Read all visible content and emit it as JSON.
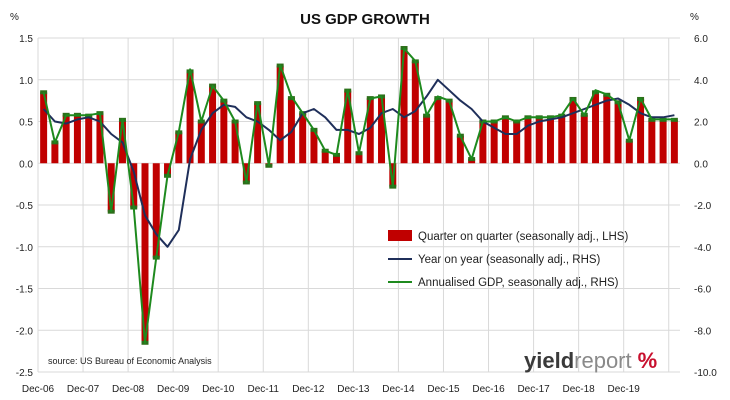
{
  "chart_data": {
    "type": "bar+line",
    "title": "US GDP GROWTH",
    "left_unit": "%",
    "right_unit": "%",
    "source": "source: US Bureau of Economic Analysis",
    "logo": {
      "part1": "yield",
      "part2": "report",
      "symbol": "%"
    },
    "y_left": {
      "min": -2.5,
      "max": 1.5,
      "ticks": [
        "1.5",
        "1.0",
        "0.5",
        "0.0",
        "-0.5",
        "-1.0",
        "-1.5",
        "-2.0",
        "-2.5"
      ]
    },
    "y_right": {
      "min": -10,
      "max": 6,
      "ticks": [
        "6.0",
        "4.0",
        "2.0",
        "0.0",
        "-2.0",
        "-4.0",
        "-6.0",
        "-8.0",
        "-10.0"
      ]
    },
    "x_ticks": [
      "Dec-06",
      "Dec-07",
      "Dec-08",
      "Dec-09",
      "Dec-10",
      "Dec-11",
      "Dec-12",
      "Dec-13",
      "Dec-14",
      "Dec-15",
      "Dec-16",
      "Dec-17",
      "Dec-18",
      "Dec-19"
    ],
    "grid": true,
    "legend_position": "bottom-right",
    "series": [
      {
        "name": "Quarter on quarter (seasonally adj., LHS)",
        "type": "bar",
        "axis": "left",
        "color": "#c00000",
        "values": [
          0.85,
          0.25,
          0.58,
          0.58,
          0.57,
          0.6,
          -0.58,
          0.52,
          -0.53,
          -2.15,
          -1.13,
          -0.15,
          0.37,
          1.1,
          0.5,
          0.93,
          0.75,
          0.5,
          -0.23,
          0.72,
          -0.03,
          1.17,
          0.78,
          0.6,
          0.4,
          0.15,
          0.1,
          0.87,
          0.12,
          0.78,
          0.8,
          -0.28,
          1.38,
          1.22,
          0.57,
          0.78,
          0.75,
          0.33,
          0.05,
          0.5,
          0.5,
          0.55,
          0.5,
          0.55,
          0.55,
          0.55,
          0.57,
          0.77,
          0.58,
          0.85,
          0.82,
          0.73,
          0.27,
          0.77,
          0.52,
          0.52,
          0.52
        ]
      },
      {
        "name": "Year on year (seasonally adj., RHS)",
        "type": "line",
        "axis": "right",
        "color": "#1f2f5a",
        "values": [
          2.6,
          2.0,
          1.9,
          2.1,
          2.2,
          2.0,
          1.4,
          1.0,
          -0.4,
          -2.5,
          -3.4,
          -4.0,
          -3.2,
          0.2,
          1.6,
          2.4,
          2.8,
          2.7,
          2.2,
          2.0,
          1.6,
          1.1,
          1.5,
          2.4,
          2.6,
          2.2,
          1.6,
          1.6,
          1.4,
          1.7,
          2.4,
          2.6,
          2.2,
          2.5,
          3.2,
          4.0,
          3.5,
          3.0,
          2.6,
          2.0,
          1.7,
          1.4,
          1.4,
          1.8,
          2.0,
          2.1,
          2.2,
          2.4,
          2.6,
          2.8,
          3.0,
          3.1,
          2.8,
          2.4,
          2.2,
          2.2,
          2.3
        ]
      },
      {
        "name": "Annualised GDP, seasonally adj., RHS)",
        "type": "line",
        "axis": "right",
        "color": "#1e8a1e",
        "values": [
          3.4,
          1.0,
          2.3,
          2.3,
          2.3,
          2.4,
          -2.3,
          2.1,
          -2.1,
          -8.6,
          -4.5,
          -0.6,
          1.5,
          4.5,
          2.0,
          3.7,
          3.0,
          2.0,
          -0.9,
          2.9,
          -0.1,
          4.7,
          3.2,
          2.4,
          1.6,
          0.6,
          0.4,
          3.5,
          0.5,
          3.1,
          3.2,
          -1.1,
          5.5,
          4.9,
          2.3,
          3.2,
          3.0,
          1.3,
          0.2,
          2.0,
          2.0,
          2.2,
          2.0,
          2.2,
          2.2,
          2.2,
          2.3,
          3.1,
          2.3,
          3.5,
          3.3,
          2.9,
          1.1,
          3.1,
          2.1,
          2.1,
          2.1
        ]
      }
    ]
  }
}
